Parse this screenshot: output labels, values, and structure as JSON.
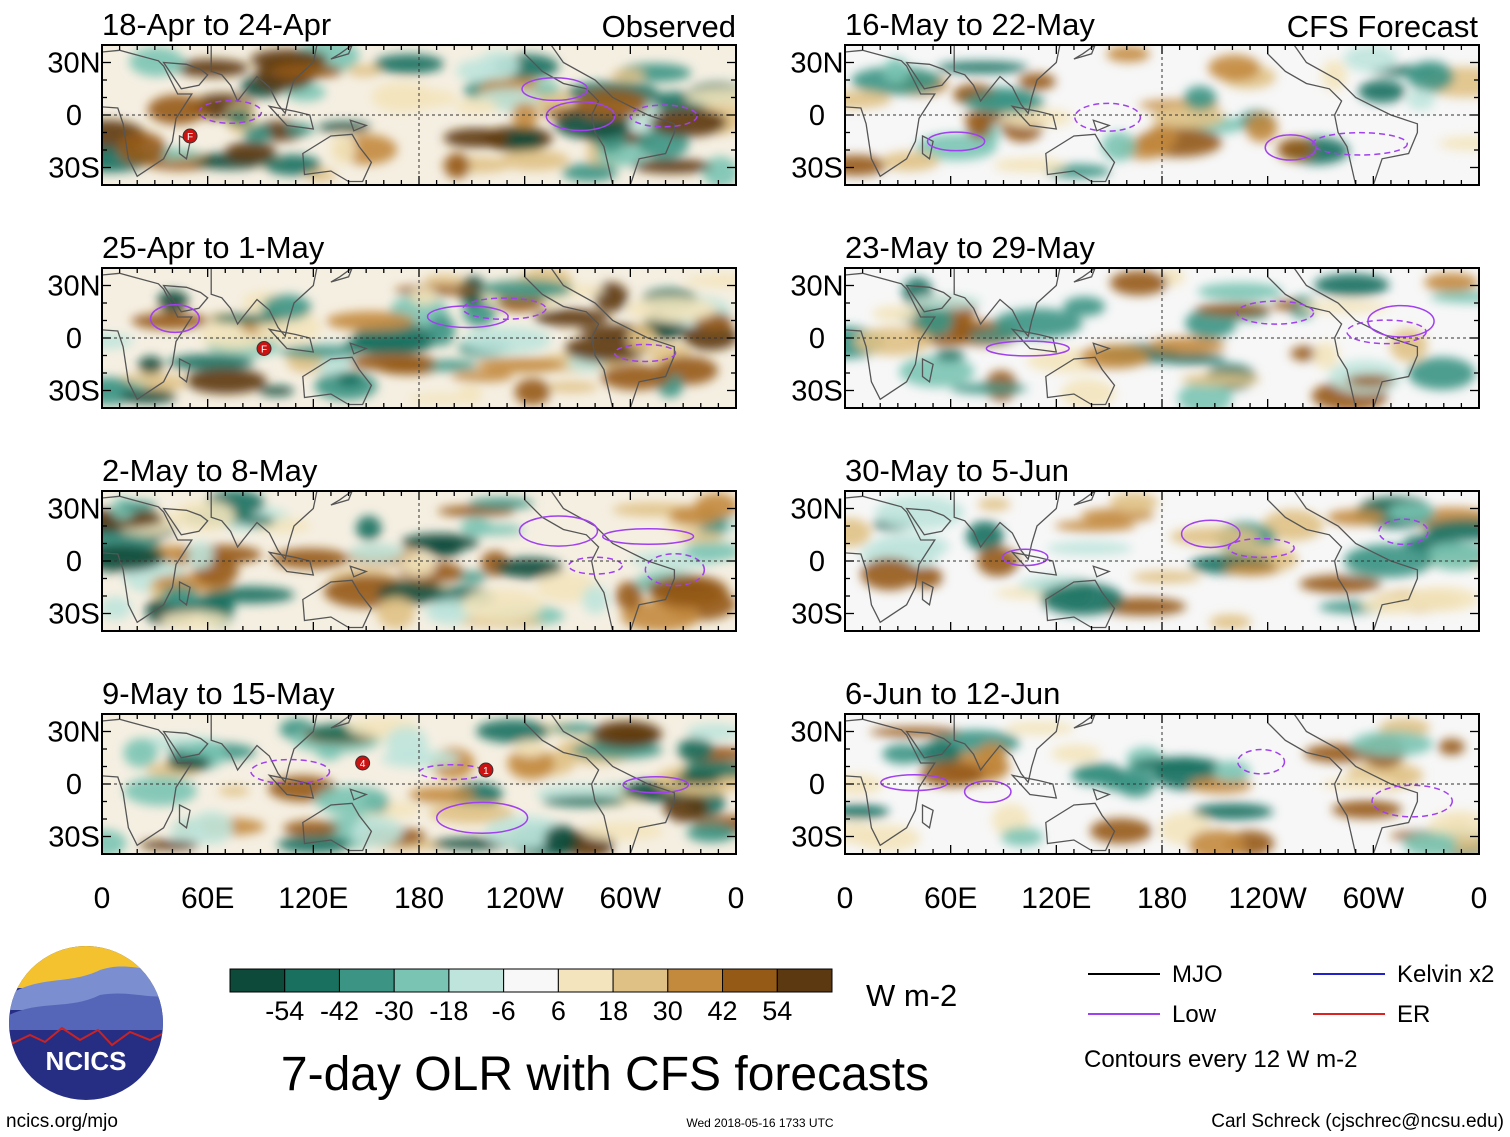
{
  "chart_data": {
    "type": "heatmap",
    "title": "7-day OLR with CFS forecasts",
    "units": "W m-2",
    "x_tick_labels": [
      "0",
      "60E",
      "120E",
      "180",
      "120W",
      "60W",
      "0"
    ],
    "y_tick_labels": [
      "30N",
      "0",
      "30S"
    ],
    "x_range_deg_lon": [
      0,
      360
    ],
    "y_range_deg_lat": [
      -40,
      40
    ],
    "columns": [
      {
        "header": "Observed",
        "panels": [
          {
            "period": "18-Apr to 24-Apr",
            "cyclones": [
              "F"
            ]
          },
          {
            "period": "25-Apr to 1-May",
            "cyclones": [
              "F"
            ]
          },
          {
            "period": "2-May to 8-May",
            "cyclones": []
          },
          {
            "period": "9-May to 15-May",
            "cyclones": [
              "4",
              "1"
            ]
          }
        ]
      },
      {
        "header": "CFS Forecast",
        "panels": [
          {
            "period": "16-May to 22-May",
            "cyclones": []
          },
          {
            "period": "23-May to 29-May",
            "cyclones": []
          },
          {
            "period": "30-May to 5-Jun",
            "cyclones": []
          },
          {
            "period": "6-Jun to 12-Jun",
            "cyclones": []
          }
        ]
      }
    ],
    "colorbar": {
      "boundaries": [
        "-54",
        "-42",
        "-30",
        "-18",
        "-6",
        "6",
        "18",
        "30",
        "42",
        "54"
      ],
      "colors": [
        "#0e4a3a",
        "#19705f",
        "#3c9484",
        "#7ac4b4",
        "#bfe4dc",
        "#f8f8f8",
        "#f3e4bd",
        "#e0c185",
        "#c38a3e",
        "#965a17",
        "#5c3910"
      ],
      "units": "W m-2"
    },
    "legend": [
      {
        "label": "MJO",
        "color": "#000000"
      },
      {
        "label": "Kelvin x2",
        "color": "#2222cc"
      },
      {
        "label": "Low",
        "color": "#a040ee"
      },
      {
        "label": "ER",
        "color": "#dd2222"
      }
    ],
    "contour_note": "Contours every 12 W m-2"
  },
  "footer": {
    "url": "ncics.org/mjo",
    "timestamp": "Wed 2018-05-16 1733 UTC",
    "author": "Carl Schreck (cjschrec@ncsu.edu)"
  },
  "logo": {
    "text": "NCICS"
  }
}
